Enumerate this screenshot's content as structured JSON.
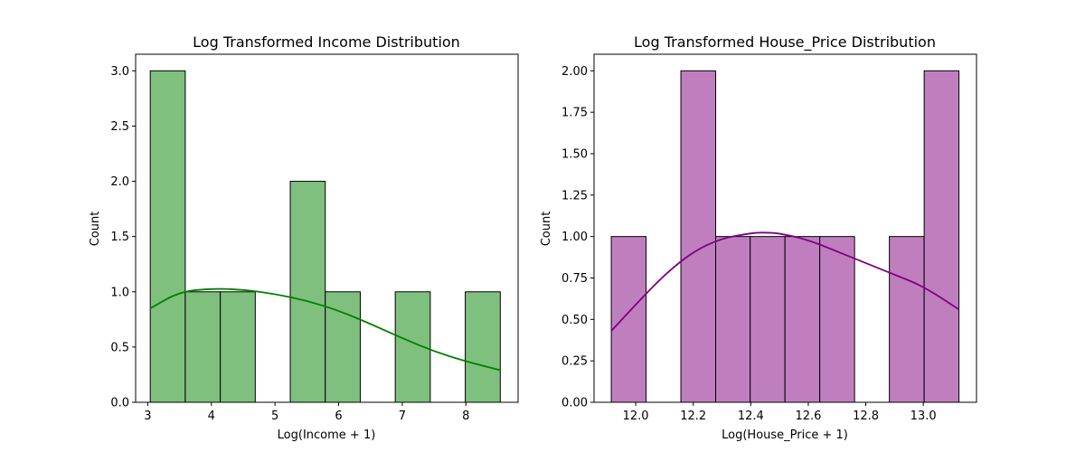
{
  "chart_data": [
    {
      "type": "bar",
      "title": "Log Transformed Income Distribution",
      "xlabel": "Log(Income + 1)",
      "ylabel": "Count",
      "xlim": [
        2.81,
        8.82
      ],
      "ylim": [
        0,
        3.15
      ],
      "xticks": [
        3,
        4,
        5,
        6,
        7,
        8
      ],
      "xtick_labels": [
        "3",
        "4",
        "5",
        "6",
        "7",
        "8"
      ],
      "yticks": [
        0,
        0.5,
        1.0,
        1.5,
        2.0,
        2.5,
        3.0
      ],
      "ytick_labels": [
        "0.0",
        "0.5",
        "1.0",
        "1.5",
        "2.0",
        "2.5",
        "3.0"
      ],
      "bar_color": "#7fc07f",
      "line_color": "#008000",
      "bins": [
        {
          "x0": 3.04,
          "x1": 3.59,
          "count": 3
        },
        {
          "x0": 3.59,
          "x1": 4.14,
          "count": 1
        },
        {
          "x0": 4.14,
          "x1": 4.69,
          "count": 1
        },
        {
          "x0": 4.69,
          "x1": 5.24,
          "count": 0
        },
        {
          "x0": 5.24,
          "x1": 5.79,
          "count": 2
        },
        {
          "x0": 5.79,
          "x1": 6.34,
          "count": 1
        },
        {
          "x0": 6.34,
          "x1": 6.89,
          "count": 0
        },
        {
          "x0": 6.89,
          "x1": 7.44,
          "count": 1
        },
        {
          "x0": 7.44,
          "x1": 7.99,
          "count": 0
        },
        {
          "x0": 7.99,
          "x1": 8.54,
          "count": 1
        }
      ],
      "kde": {
        "x": [
          3.04,
          3.5,
          4.0,
          4.5,
          5.0,
          5.5,
          6.0,
          6.5,
          7.0,
          7.5,
          8.0,
          8.54
        ],
        "y": [
          0.85,
          1.0,
          1.03,
          1.02,
          0.98,
          0.92,
          0.83,
          0.71,
          0.58,
          0.46,
          0.37,
          0.29
        ]
      }
    },
    {
      "type": "bar",
      "title": "Log Transformed House_Price Distribution",
      "xlabel": "Log(House_Price + 1)",
      "ylabel": "Count",
      "xlim": [
        11.855,
        13.185
      ],
      "ylim": [
        0,
        2.1
      ],
      "xticks": [
        12.0,
        12.2,
        12.4,
        12.6,
        12.8,
        13.0
      ],
      "xtick_labels": [
        "12.0",
        "12.2",
        "12.4",
        "12.6",
        "12.8",
        "13.0"
      ],
      "yticks": [
        0,
        0.25,
        0.5,
        0.75,
        1.0,
        1.25,
        1.5,
        1.75,
        2.0
      ],
      "ytick_labels": [
        "0.00",
        "0.25",
        "0.50",
        "0.75",
        "1.00",
        "1.25",
        "1.50",
        "1.75",
        "2.00"
      ],
      "bar_color": "#bf7fbf",
      "line_color": "#800080",
      "bins": [
        {
          "x0": 11.915,
          "x1": 12.036,
          "count": 1
        },
        {
          "x0": 12.036,
          "x1": 12.157,
          "count": 0
        },
        {
          "x0": 12.157,
          "x1": 12.278,
          "count": 2
        },
        {
          "x0": 12.278,
          "x1": 12.398,
          "count": 1
        },
        {
          "x0": 12.398,
          "x1": 12.519,
          "count": 1
        },
        {
          "x0": 12.519,
          "x1": 12.64,
          "count": 1
        },
        {
          "x0": 12.64,
          "x1": 12.761,
          "count": 1
        },
        {
          "x0": 12.761,
          "x1": 12.882,
          "count": 0
        },
        {
          "x0": 12.882,
          "x1": 13.003,
          "count": 1
        },
        {
          "x0": 13.003,
          "x1": 13.124,
          "count": 2
        }
      ],
      "kde": {
        "x": [
          11.915,
          12.0,
          12.1,
          12.2,
          12.3,
          12.4,
          12.44,
          12.5,
          12.6,
          12.7,
          12.8,
          12.9,
          13.0,
          13.124
        ],
        "y": [
          0.43,
          0.59,
          0.77,
          0.91,
          0.99,
          1.02,
          1.025,
          1.02,
          0.98,
          0.91,
          0.84,
          0.77,
          0.7,
          0.56
        ]
      }
    }
  ]
}
